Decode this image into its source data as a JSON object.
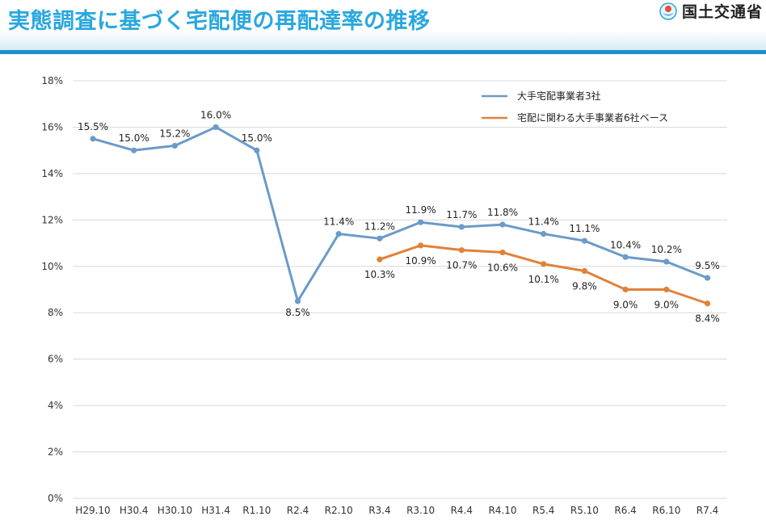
{
  "header": {
    "title": "実態調査に基づく宅配便の再配達率の推移",
    "brand": "国土交通省"
  },
  "colors": {
    "title": "#2aa7df",
    "band": "#1b8fce",
    "series_blue": "#6a9bc9",
    "series_orange": "#e1813a",
    "grid": "#d9d9d9"
  },
  "chart_data": {
    "type": "line",
    "title": "",
    "xlabel": "",
    "ylabel": "",
    "categories": [
      "H29.10",
      "H30.4",
      "H30.10",
      "H31.4",
      "R1.10",
      "R2.4",
      "R2.10",
      "R3.4",
      "R3.10",
      "R4.4",
      "R4.10",
      "R5.4",
      "R5.10",
      "R6.4",
      "R6.10",
      "R7.4"
    ],
    "y_ticks": [
      "0%",
      "2%",
      "4%",
      "6%",
      "8%",
      "10%",
      "12%",
      "14%",
      "16%",
      "18%"
    ],
    "ylim": [
      0,
      18
    ],
    "grid": true,
    "legend_position": "top-right",
    "series": [
      {
        "name": "大手宅配事業者3社",
        "color": "#6a9bc9",
        "values": [
          15.5,
          15.0,
          15.2,
          16.0,
          15.0,
          8.5,
          11.4,
          11.2,
          11.9,
          11.7,
          11.8,
          11.4,
          11.1,
          10.4,
          10.2,
          9.5
        ],
        "labels": [
          "15.5%",
          "15.0%",
          "15.2%",
          "16.0%",
          "15.0%",
          "8.5%",
          "11.4%",
          "11.2%",
          "11.9%",
          "11.7%",
          "11.8%",
          "11.4%",
          "11.1%",
          "10.4%",
          "10.2%",
          "9.5%"
        ]
      },
      {
        "name": "宅配に関わる大手事業者6社ベース",
        "color": "#e1813a",
        "values": [
          null,
          null,
          null,
          null,
          null,
          null,
          null,
          10.3,
          10.9,
          10.7,
          10.6,
          10.1,
          9.8,
          9.0,
          9.0,
          8.4
        ],
        "labels": [
          null,
          null,
          null,
          null,
          null,
          null,
          null,
          "10.3%",
          "10.9%",
          "10.7%",
          "10.6%",
          "10.1%",
          "9.8%",
          "9.0%",
          "9.0%",
          "8.4%"
        ]
      }
    ]
  }
}
